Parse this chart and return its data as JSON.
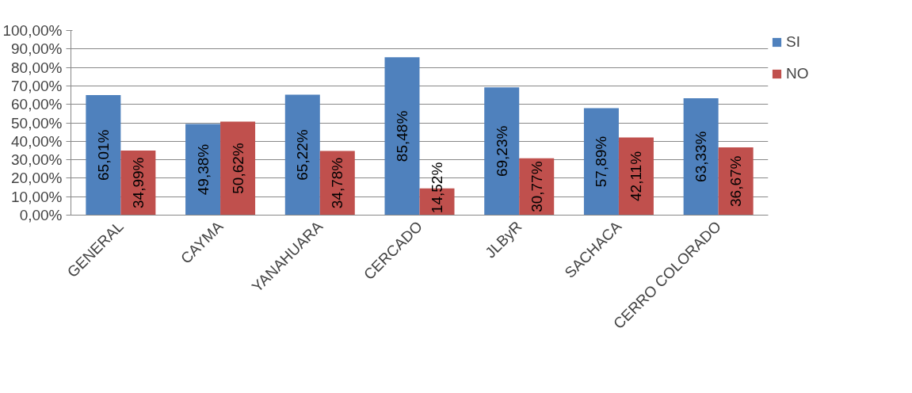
{
  "chart_data": {
    "type": "bar",
    "categories": [
      "GENERAL",
      "CAYMA",
      "YANAHUARA",
      "CERCADO",
      "JLByR",
      "SACHACA",
      "CERRO COLORADO"
    ],
    "series": [
      {
        "name": "SI",
        "color": "#4f81bd",
        "values": [
          65.01,
          49.38,
          65.22,
          85.48,
          69.23,
          57.89,
          63.33
        ],
        "value_labels": [
          "65,01%",
          "49,38%",
          "65,22%",
          "85,48%",
          "69,23%",
          "57,89%",
          "63,33%"
        ]
      },
      {
        "name": "NO",
        "color": "#c0504d",
        "values": [
          34.99,
          50.62,
          34.78,
          14.52,
          30.77,
          42.11,
          36.67
        ],
        "value_labels": [
          "34,99%",
          "50,62%",
          "34,78%",
          "14,52%",
          "30,77%",
          "42,11%",
          "36,67%"
        ]
      }
    ],
    "ylim": [
      0,
      100
    ],
    "yticks": [
      {
        "value": 0,
        "label": "0,00%"
      },
      {
        "value": 10,
        "label": "10,00%"
      },
      {
        "value": 20,
        "label": "20,00%"
      },
      {
        "value": 30,
        "label": "30,00%"
      },
      {
        "value": 40,
        "label": "40,00%"
      },
      {
        "value": 50,
        "label": "50,00%"
      },
      {
        "value": 60,
        "label": "60,00%"
      },
      {
        "value": 70,
        "label": "70,00%"
      },
      {
        "value": 80,
        "label": "80,00%"
      },
      {
        "value": 90,
        "label": "90,00%"
      },
      {
        "value": 100,
        "label": "100,00%"
      }
    ],
    "grid": "y",
    "legend": "right"
  }
}
